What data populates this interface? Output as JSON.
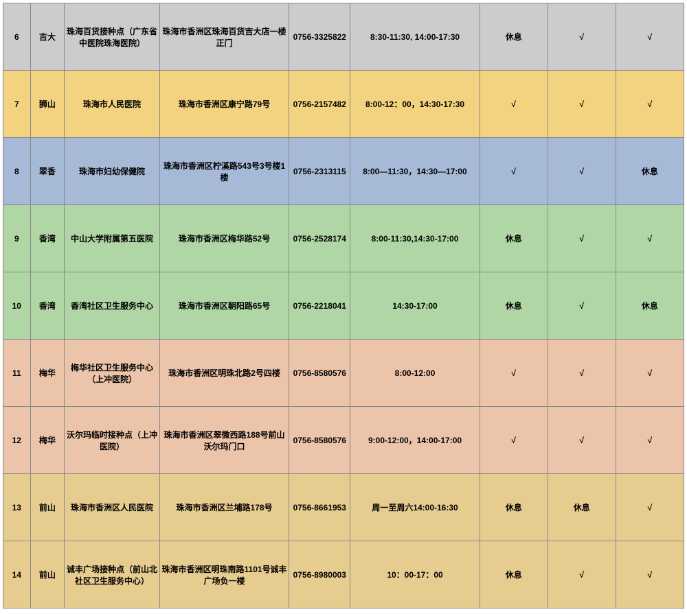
{
  "table": {
    "row_colors": {
      "gray": "#cccccc",
      "yellow": "#f4d380",
      "blue": "#a6b9d7",
      "green": "#b1d6a5",
      "peach": "#ecc4aa",
      "tan": "#e7cc8f"
    },
    "rows": [
      {
        "color": "gray",
        "num": "6",
        "area": "吉大",
        "name": "珠海百货接种点（广东省中医院珠海医院）",
        "addr": "珠海市香洲区珠海百货吉大店一楼正门",
        "phone": "0756-3325822",
        "time": "8:30-11:30, 14:00-17:30",
        "c1": "休息",
        "c2": "√",
        "c3": "√"
      },
      {
        "color": "yellow",
        "num": "7",
        "area": "狮山",
        "name": "珠海市人民医院",
        "addr": "珠海市香洲区康宁路79号",
        "phone": "0756-2157482",
        "time": "8:00-12：00，14:30-17:30",
        "c1": "√",
        "c2": "√",
        "c3": "√"
      },
      {
        "color": "blue",
        "num": "8",
        "area": "翠香",
        "name": "珠海市妇幼保健院",
        "addr": "珠海市香洲区柠溪路543号3号楼1楼",
        "phone": "0756-2313115",
        "time": "8:00—11:30，14:30—17:00",
        "c1": "√",
        "c2": "√",
        "c3": "休息"
      },
      {
        "color": "green",
        "num": "9",
        "area": "香湾",
        "name": "中山大学附属第五医院",
        "addr": "珠海市香洲区梅华路52号",
        "phone": "0756-2528174",
        "time": "8:00-11:30,14:30-17:00",
        "c1": "休息",
        "c2": "√",
        "c3": "√"
      },
      {
        "color": "green",
        "num": "10",
        "area": "香湾",
        "name": "香湾社区卫生服务中心",
        "addr": "珠海市香洲区朝阳路65号",
        "phone": "0756-2218041",
        "time": "14:30-17:00",
        "c1": "休息",
        "c2": "√",
        "c3": "休息"
      },
      {
        "color": "peach",
        "num": "11",
        "area": "梅华",
        "name": "梅华社区卫生服务中心（上冲医院）",
        "addr": "珠海市香洲区明珠北路2号四楼",
        "phone": "0756-8580576",
        "time": "8:00-12:00",
        "c1": "√",
        "c2": "√",
        "c3": "√"
      },
      {
        "color": "peach",
        "num": "12",
        "area": "梅华",
        "name": "沃尔玛临时接种点（上冲医院）",
        "addr": "珠海市香洲区翠微西路188号前山沃尔玛门口",
        "phone": "0756-8580576",
        "time": "9:00-12:00，14:00-17:00",
        "c1": "√",
        "c2": "√",
        "c3": "√"
      },
      {
        "color": "tan",
        "num": "13",
        "area": "前山",
        "name": "珠海市香洲区人民医院",
        "addr": "珠海市香洲区兰埔路178号",
        "phone": "0756-8661953",
        "time": "周一至周六14:00-16:30",
        "c1": "休息",
        "c2": "休息",
        "c3": "√"
      },
      {
        "color": "tan",
        "num": "14",
        "area": "前山",
        "name": "诚丰广场接种点（前山北社区卫生服务中心）",
        "addr": "珠海市香洲区明珠南路1101号诚丰广场负一楼",
        "phone": "0756-8980003",
        "time": "10：00-17：00",
        "c1": "休息",
        "c2": "√",
        "c3": "√"
      }
    ]
  }
}
